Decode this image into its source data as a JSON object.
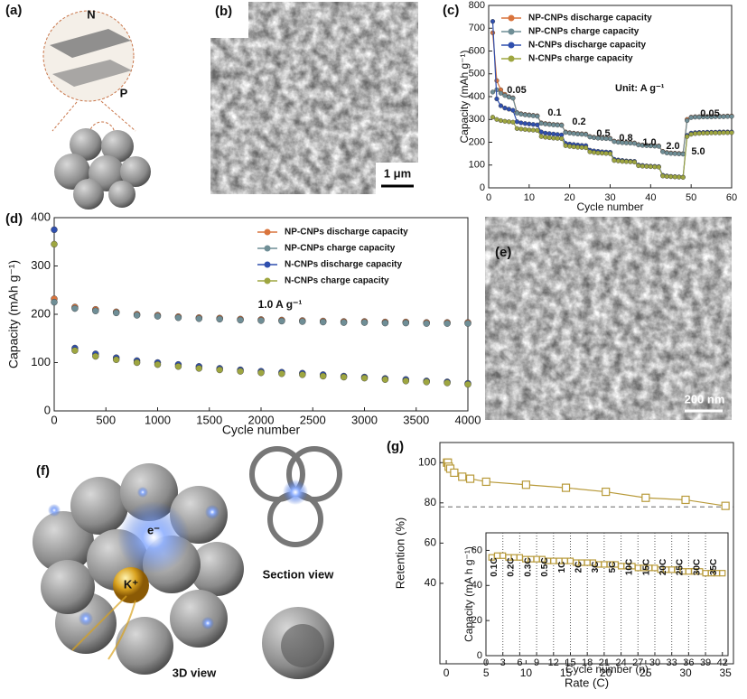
{
  "figure": {
    "panel_labels": [
      "(a)",
      "(b)",
      "(c)",
      "(d)",
      "(e)",
      "(f)",
      "(g)"
    ],
    "a": {
      "labels": [
        "N",
        "P"
      ]
    },
    "b": {
      "scale_bar": "1 μm"
    },
    "e": {
      "scale_bar": "200 nm"
    },
    "f": {
      "electron": "e⁻",
      "ion": "K⁺",
      "section_label": "Section view",
      "view_label": "3D view"
    }
  },
  "chart_data": [
    {
      "type": "line",
      "xlabel": "Cycle number",
      "ylabel": "Capacity (mAh g⁻¹)",
      "xlim": [
        0,
        60
      ],
      "ylim": [
        0,
        800
      ],
      "xticks": [
        0,
        10,
        20,
        30,
        40,
        50,
        60
      ],
      "yticks": [
        0,
        100,
        200,
        300,
        400,
        500,
        600,
        700,
        800
      ],
      "annotations": [
        "0.05",
        "0.1",
        "0.2",
        "0.5",
        "0.8",
        "1.0",
        "2.0",
        "5.0",
        "0.05"
      ],
      "unit_note": "Unit: A g⁻¹",
      "x": [
        1,
        2,
        3,
        4,
        5,
        6,
        7,
        8,
        9,
        10,
        11,
        12,
        13,
        14,
        15,
        16,
        17,
        18,
        19,
        20,
        21,
        22,
        23,
        24,
        25,
        26,
        27,
        28,
        29,
        30,
        31,
        32,
        33,
        34,
        35,
        36,
        37,
        38,
        39,
        40,
        41,
        42,
        43,
        44,
        45,
        46,
        47,
        48,
        49,
        50,
        51,
        52,
        53,
        54,
        55,
        56,
        57,
        58,
        59,
        60
      ],
      "series": [
        {
          "name": "NP-CNPs discharge capacity",
          "color": "#d9743d",
          "values": [
            680,
            470,
            430,
            410,
            400,
            395,
            330,
            325,
            322,
            320,
            318,
            316,
            285,
            282,
            280,
            278,
            277,
            276,
            245,
            242,
            240,
            238,
            237,
            236,
            225,
            222,
            220,
            219,
            218,
            217,
            205,
            202,
            200,
            199,
            198,
            197,
            190,
            188,
            187,
            186,
            185,
            184,
            160,
            155,
            153,
            152,
            151,
            150,
            300,
            310,
            312,
            312,
            313,
            313,
            313,
            314,
            314,
            314,
            315,
            315
          ]
        },
        {
          "name": "NP-CNPs charge capacity",
          "color": "#6f8e96",
          "values": [
            420,
            430,
            415,
            405,
            398,
            393,
            328,
            323,
            320,
            318,
            316,
            314,
            283,
            280,
            278,
            276,
            275,
            274,
            243,
            240,
            238,
            236,
            235,
            234,
            223,
            220,
            218,
            217,
            216,
            215,
            203,
            200,
            198,
            197,
            196,
            195,
            188,
            186,
            185,
            184,
            183,
            182,
            158,
            153,
            151,
            150,
            149,
            148,
            295,
            308,
            310,
            310,
            311,
            311,
            311,
            312,
            312,
            312,
            313,
            313
          ]
        },
        {
          "name": "N-CNPs discharge capacity",
          "color": "#2f4fae",
          "values": [
            730,
            390,
            360,
            350,
            345,
            340,
            290,
            285,
            282,
            280,
            278,
            276,
            245,
            240,
            238,
            236,
            234,
            232,
            195,
            192,
            190,
            188,
            186,
            185,
            165,
            162,
            160,
            158,
            157,
            156,
            125,
            122,
            120,
            118,
            117,
            116,
            100,
            98,
            96,
            95,
            94,
            93,
            55,
            52,
            50,
            49,
            48,
            47,
            230,
            240,
            242,
            243,
            243,
            244,
            244,
            244,
            245,
            245,
            245,
            245
          ]
        },
        {
          "name": "N-CNPs charge capacity",
          "color": "#9ea640",
          "values": [
            310,
            300,
            295,
            292,
            290,
            288,
            260,
            258,
            256,
            254,
            253,
            252,
            225,
            222,
            220,
            218,
            217,
            216,
            185,
            182,
            180,
            178,
            177,
            176,
            158,
            155,
            153,
            152,
            151,
            150,
            120,
            118,
            116,
            115,
            114,
            113,
            97,
            95,
            94,
            93,
            92,
            91,
            52,
            50,
            49,
            48,
            47,
            46,
            225,
            235,
            238,
            239,
            240,
            240,
            241,
            241,
            241,
            242,
            242,
            242
          ]
        }
      ]
    },
    {
      "type": "scatter",
      "xlabel": "Cycle number",
      "ylabel": "Capacity (mAh g⁻¹)",
      "xlim": [
        0,
        4000
      ],
      "ylim": [
        0,
        400
      ],
      "xticks": [
        0,
        500,
        1000,
        1500,
        2000,
        2500,
        3000,
        3500,
        4000
      ],
      "yticks": [
        0,
        100,
        200,
        300,
        400
      ],
      "annotation": "1.0 A g⁻¹",
      "x": [
        0,
        200,
        400,
        600,
        800,
        1000,
        1200,
        1400,
        1600,
        1800,
        2000,
        2200,
        2400,
        2600,
        2800,
        3000,
        3200,
        3400,
        3600,
        3800,
        4000
      ],
      "series": [
        {
          "name": "NP-CNPs discharge capacity",
          "color": "#d9743d",
          "values": [
            232,
            215,
            210,
            205,
            200,
            198,
            195,
            193,
            192,
            190,
            189,
            188,
            187,
            186,
            185,
            185,
            184,
            184,
            183,
            183,
            183
          ]
        },
        {
          "name": "NP-CNPs charge capacity",
          "color": "#6f8e96",
          "values": [
            225,
            212,
            207,
            203,
            198,
            196,
            193,
            191,
            190,
            188,
            187,
            186,
            185,
            184,
            183,
            183,
            182,
            182,
            181,
            181,
            181
          ]
        },
        {
          "name": "N-CNPs discharge capacity",
          "color": "#2f4fae",
          "values": [
            375,
            130,
            118,
            110,
            104,
            100,
            96,
            92,
            88,
            85,
            82,
            80,
            78,
            75,
            72,
            70,
            67,
            65,
            62,
            60,
            57
          ]
        },
        {
          "name": "N-CNPs charge capacity",
          "color": "#9ea640",
          "values": [
            345,
            125,
            113,
            106,
            100,
            96,
            92,
            88,
            85,
            82,
            79,
            77,
            75,
            72,
            70,
            68,
            65,
            62,
            60,
            58,
            55
          ]
        }
      ]
    },
    {
      "type": "line",
      "xlabel": "Rate (C)",
      "ylabel": "Retention (%)",
      "xlim": [
        -0.8,
        36
      ],
      "ylim": [
        0,
        110
      ],
      "xticks": [
        0,
        5,
        10,
        15,
        20,
        25,
        30,
        35
      ],
      "yticks": [
        40,
        60,
        80,
        100
      ],
      "reference_line": 78,
      "color": "#b89a3a",
      "x": [
        0.1,
        0.2,
        0.3,
        0.5,
        1,
        2,
        3,
        5,
        10,
        15,
        20,
        25,
        30,
        35
      ],
      "values": [
        100,
        100,
        98,
        97,
        95,
        93,
        92,
        90.5,
        89,
        87.5,
        85.5,
        82.5,
        81.5,
        78.5
      ]
    },
    {
      "type": "line",
      "xlabel": "Cycle number (n)",
      "ylabel": "Capacity (mA h g⁻¹)",
      "xlim": [
        0,
        43
      ],
      "ylim": [
        0,
        70
      ],
      "xticks": [
        0,
        3,
        6,
        9,
        12,
        15,
        18,
        21,
        24,
        27,
        30,
        33,
        36,
        39,
        42
      ],
      "yticks": [
        0,
        20,
        40,
        60
      ],
      "color": "#b89a3a",
      "annotations": [
        "0.1C",
        "0.2C",
        "0.3C",
        "0.5C",
        "1C",
        "2C",
        "3C",
        "5C",
        "10C",
        "15C",
        "20C",
        "25C",
        "30C",
        "35C"
      ],
      "x": [
        1,
        2,
        3,
        4,
        5,
        6,
        7,
        8,
        9,
        10,
        11,
        12,
        13,
        14,
        15,
        16,
        17,
        18,
        19,
        20,
        21,
        22,
        23,
        24,
        25,
        26,
        27,
        28,
        29,
        30,
        31,
        32,
        33,
        34,
        35,
        36,
        37,
        38,
        39,
        40,
        41,
        42
      ],
      "values": [
        56,
        57,
        57,
        56,
        56,
        56,
        55,
        55,
        55,
        55,
        54,
        54,
        54,
        54,
        54,
        53,
        53,
        53,
        53,
        52,
        52,
        52,
        52,
        51,
        51,
        51,
        50,
        50,
        50,
        50,
        49,
        49,
        49,
        49,
        48,
        48,
        48,
        48,
        47,
        47,
        47,
        47
      ]
    }
  ]
}
